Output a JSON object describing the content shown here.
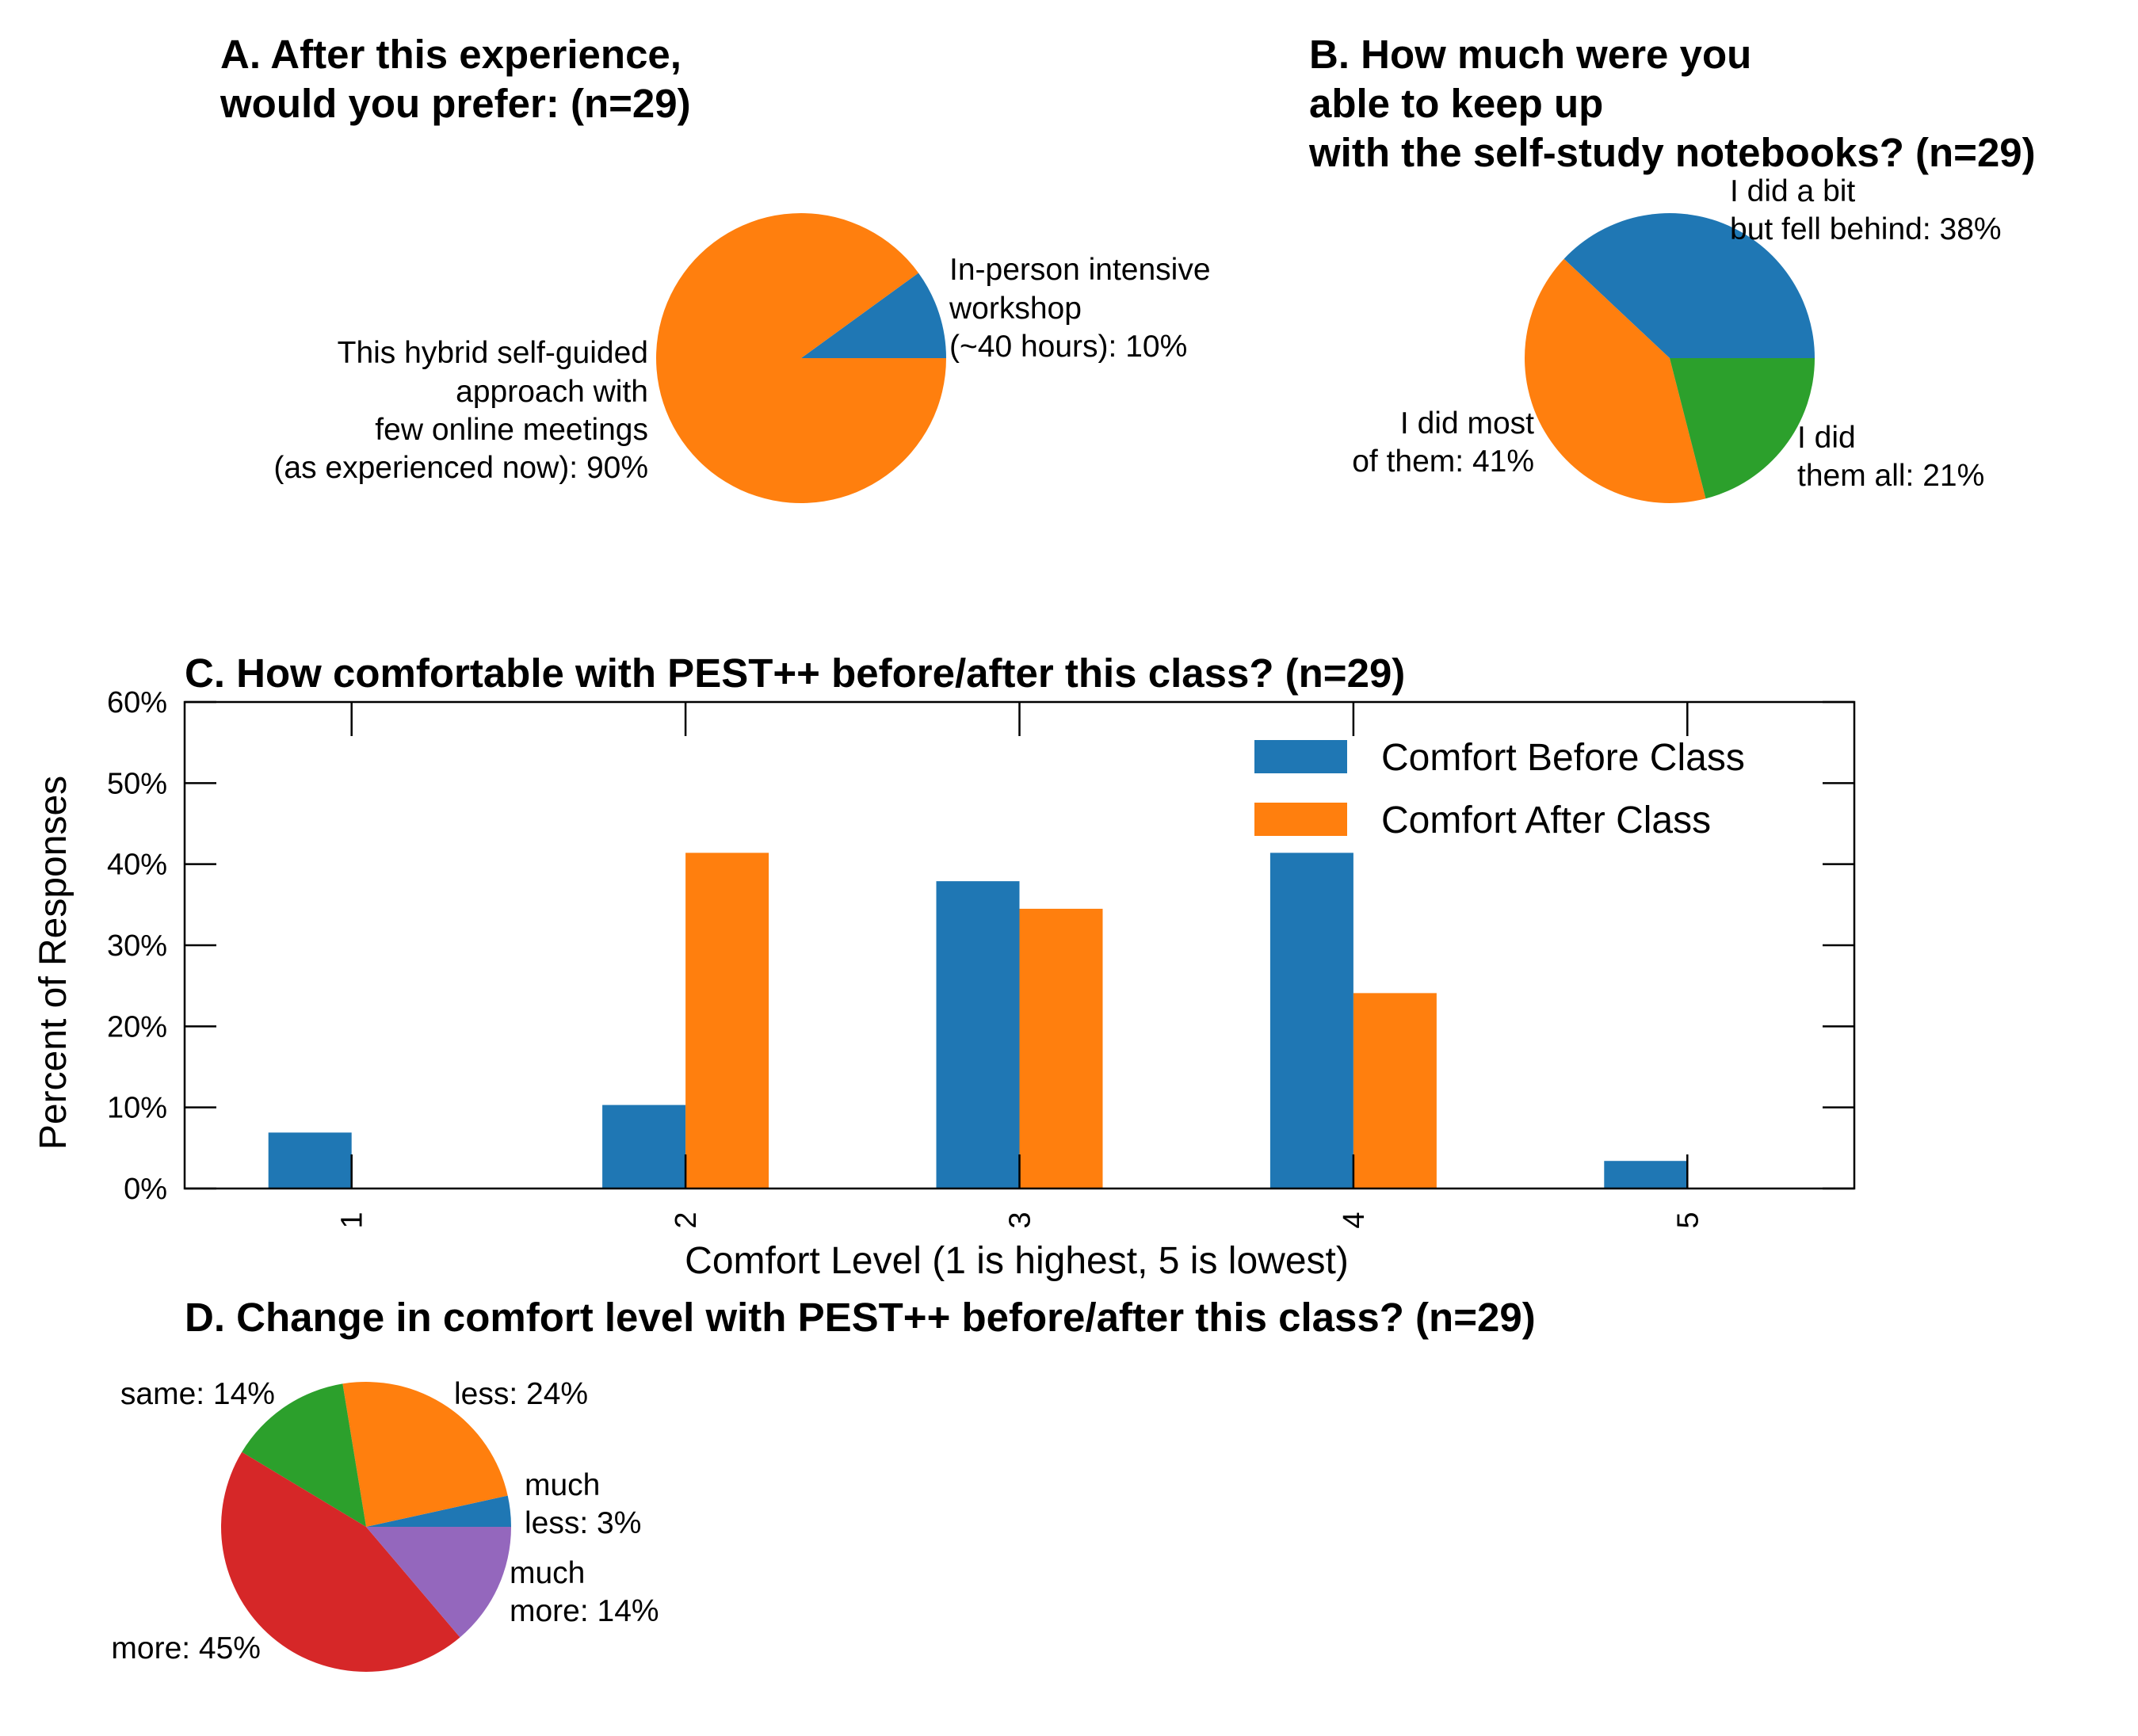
{
  "colors": {
    "blue": "#1f77b4",
    "orange": "#ff7f0e",
    "green": "#2ca02c",
    "red": "#d62728",
    "purple": "#9467bd"
  },
  "chart_data": [
    {
      "type": "pie",
      "title": [
        "A. After this experience,",
        "would you prefer: (n=29)"
      ],
      "slices": [
        {
          "label": [
            "In-person intensive",
            "workshop",
            "(~40 hours): 10%"
          ],
          "value": 10,
          "color": "#1f77b4"
        },
        {
          "label": [
            "This hybrid self-guided",
            "approach with",
            "few online meetings",
            "(as experienced now): 90%"
          ],
          "value": 90,
          "color": "#ff7f0e"
        }
      ]
    },
    {
      "type": "pie",
      "title": [
        "B. How much were you",
        "able to keep up",
        "with the self-study notebooks? (n=29)"
      ],
      "slices": [
        {
          "label": [
            "I did a bit",
            "but fell behind: 38%"
          ],
          "value": 38,
          "color": "#1f77b4"
        },
        {
          "label": [
            "I did most",
            "of them: 41%"
          ],
          "value": 41,
          "color": "#ff7f0e"
        },
        {
          "label": [
            "I did",
            "them all: 21%"
          ],
          "value": 21,
          "color": "#2ca02c"
        }
      ]
    },
    {
      "type": "bar",
      "title": "C. How comfortable with PEST++ before/after this class? (n=29)",
      "categories": [
        "1",
        "2",
        "3",
        "4",
        "5"
      ],
      "series": [
        {
          "name": "Comfort Before Class",
          "values": [
            6.9,
            10.3,
            37.9,
            41.4,
            3.4
          ],
          "color": "#1f77b4"
        },
        {
          "name": "Comfort After Class",
          "values": [
            0,
            41.4,
            34.5,
            24.1,
            0
          ],
          "color": "#ff7f0e"
        }
      ],
      "xlabel": "Comfort Level (1 is highest, 5 is lowest)",
      "ylabel": "Percent of Responses",
      "ylim": [
        0,
        60
      ],
      "yticks": [
        "0%",
        "10%",
        "20%",
        "30%",
        "40%",
        "50%",
        "60%"
      ],
      "legend": "top-right",
      "grid": false
    },
    {
      "type": "pie",
      "title": [
        "D. Change in comfort level with PEST++ before/after this class? (n=29)"
      ],
      "slices": [
        {
          "label": [
            "much",
            "less: 3%"
          ],
          "value": 3.45,
          "color": "#1f77b4"
        },
        {
          "label": [
            "less: 24%"
          ],
          "value": 24.14,
          "color": "#ff7f0e"
        },
        {
          "label": [
            "same: 14%"
          ],
          "value": 13.79,
          "color": "#2ca02c"
        },
        {
          "label": [
            "more: 45%"
          ],
          "value": 44.83,
          "color": "#d62728"
        },
        {
          "label": [
            "much",
            "more: 14%"
          ],
          "value": 13.79,
          "color": "#9467bd"
        }
      ]
    }
  ]
}
